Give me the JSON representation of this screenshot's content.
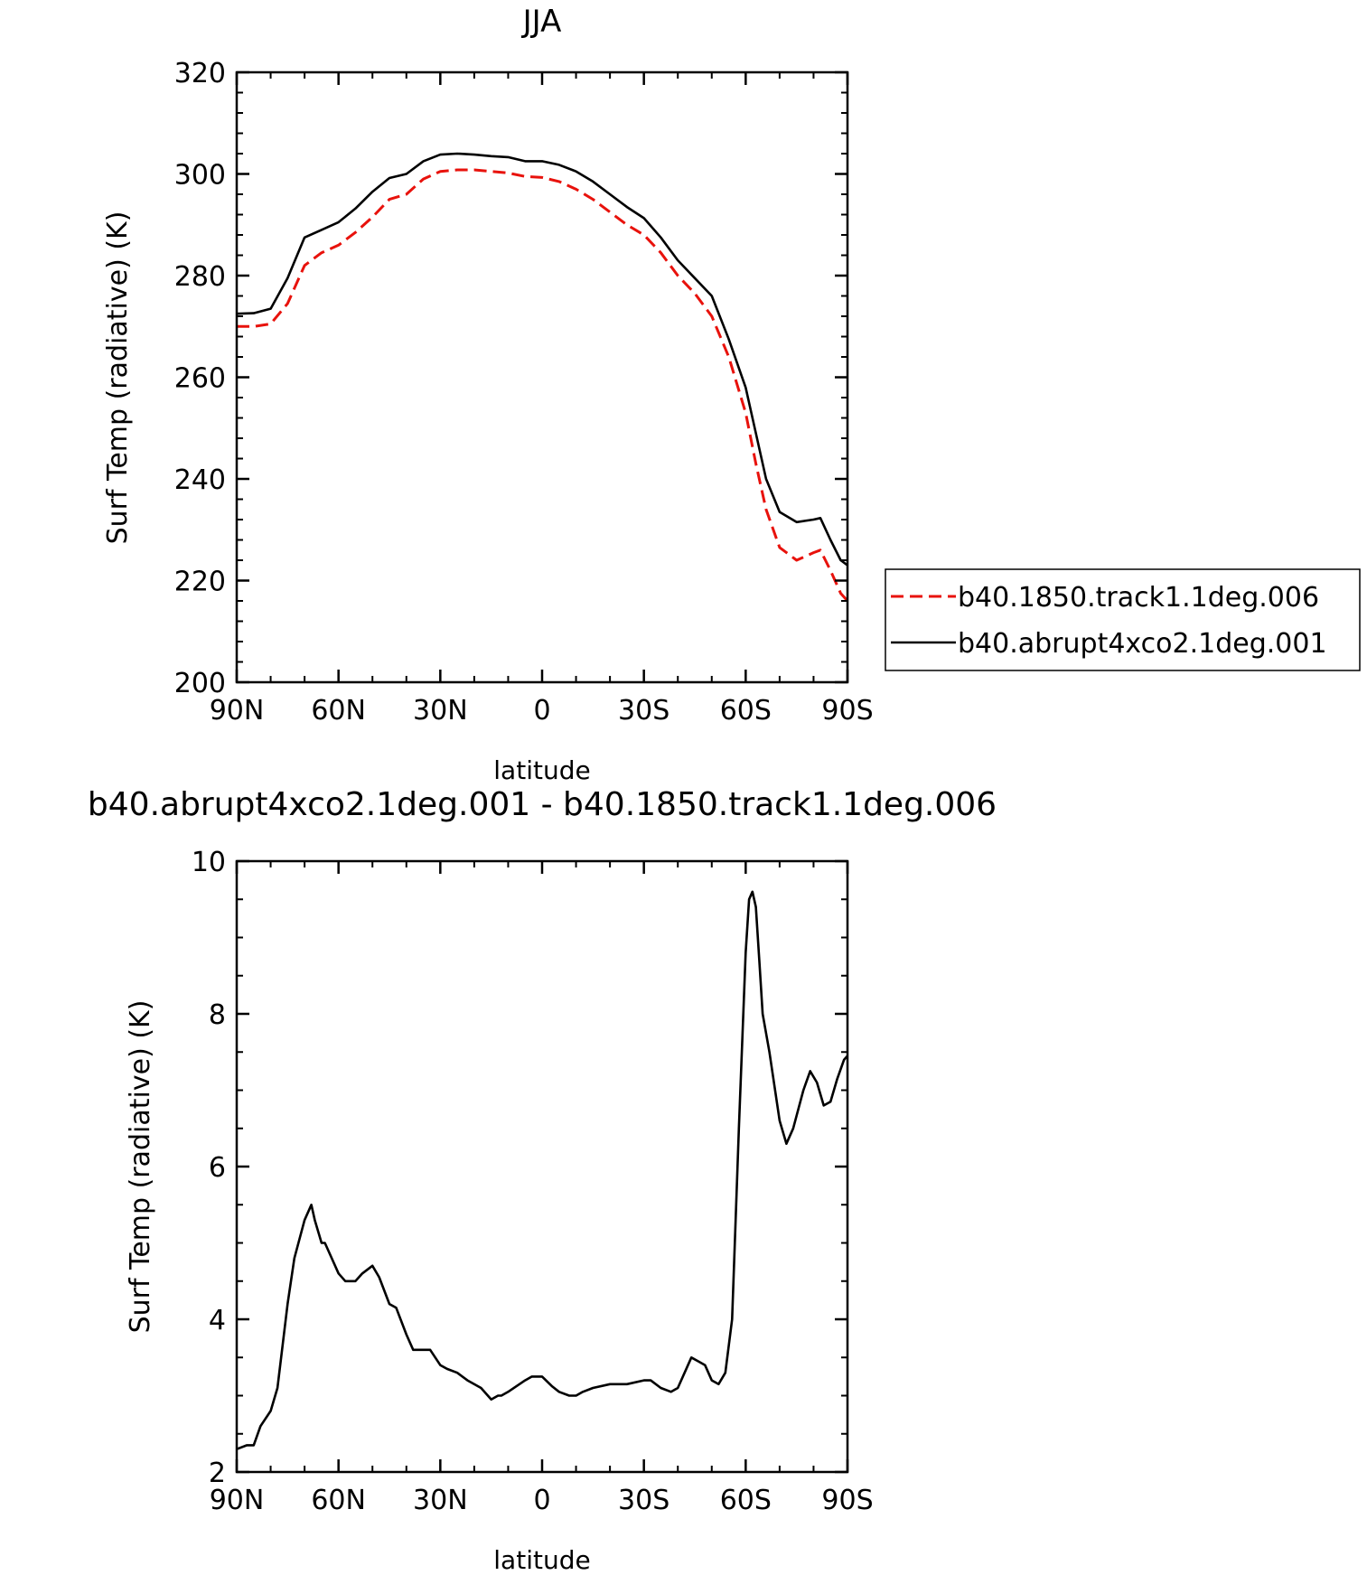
{
  "chart_data": [
    {
      "type": "line",
      "title": "JJA",
      "xlabel": "latitude",
      "ylabel": "Surf Temp (radiative) (K)",
      "x_ticks": [
        "90N",
        "60N",
        "30N",
        "0",
        "30S",
        "60S",
        "90S"
      ],
      "x_tick_values": [
        90,
        60,
        30,
        0,
        -30,
        -60,
        -90
      ],
      "xlim": [
        90,
        -90
      ],
      "ylim": [
        200,
        320
      ],
      "y_ticks": [
        200,
        220,
        240,
        260,
        280,
        300,
        320
      ],
      "legend_position": "right",
      "x": [
        90,
        85,
        80,
        75,
        70,
        65,
        60,
        55,
        50,
        45,
        40,
        35,
        30,
        25,
        20,
        15,
        10,
        5,
        0,
        -5,
        -10,
        -15,
        -20,
        -25,
        -30,
        -35,
        -40,
        -45,
        -50,
        -55,
        -60,
        -63,
        -66,
        -70,
        -75,
        -80,
        -82,
        -85,
        -88,
        -90
      ],
      "series": [
        {
          "name": "b40.1850.track1.1deg.006",
          "color": "#e8120c",
          "dash": "dashed",
          "values": [
            270.0,
            270.0,
            270.5,
            274.5,
            282.0,
            284.5,
            286.0,
            288.5,
            291.5,
            295.0,
            296.0,
            299.0,
            300.5,
            300.8,
            300.8,
            300.5,
            300.2,
            299.5,
            299.3,
            298.5,
            297.0,
            295.0,
            292.5,
            290.0,
            288.0,
            284.5,
            280.0,
            276.5,
            272.0,
            264.0,
            253.0,
            243.0,
            234.0,
            226.5,
            224.0,
            225.5,
            226.0,
            222.0,
            217.5,
            216.0
          ]
        },
        {
          "name": "b40.abrupt4xco2.1deg.001",
          "color": "#000000",
          "dash": "solid",
          "values": [
            272.5,
            272.6,
            273.5,
            279.5,
            287.5,
            289.0,
            290.5,
            293.2,
            296.5,
            299.2,
            300.0,
            302.5,
            303.8,
            304.0,
            303.8,
            303.5,
            303.3,
            302.5,
            302.5,
            301.8,
            300.5,
            298.5,
            296.0,
            293.5,
            291.3,
            287.5,
            283.0,
            279.5,
            276.0,
            267.5,
            258.0,
            249.0,
            240.0,
            233.5,
            231.5,
            232.0,
            232.3,
            228.0,
            224.0,
            223.0
          ]
        }
      ]
    },
    {
      "type": "line",
      "title": "b40.abrupt4xco2.1deg.001 - b40.1850.track1.1deg.006",
      "xlabel": "latitude",
      "ylabel": "Surf Temp (radiative) (K)",
      "x_ticks": [
        "90N",
        "60N",
        "30N",
        "0",
        "30S",
        "60S",
        "90S"
      ],
      "x_tick_values": [
        90,
        60,
        30,
        0,
        -30,
        -60,
        -90
      ],
      "xlim": [
        90,
        -90
      ],
      "ylim": [
        2,
        10
      ],
      "y_ticks": [
        2,
        4,
        6,
        8,
        10
      ],
      "x": [
        90,
        87,
        85,
        83,
        80,
        78,
        75,
        73,
        70,
        68,
        67,
        65,
        64,
        63,
        60,
        58,
        55,
        53,
        50,
        48,
        45,
        43,
        40,
        38,
        35,
        33,
        30,
        28,
        25,
        22,
        18,
        15,
        13,
        12,
        10,
        5,
        3,
        0,
        -3,
        -5,
        -8,
        -10,
        -12,
        -15,
        -20,
        -25,
        -30,
        -32,
        -35,
        -38,
        -40,
        -42,
        -44,
        -46,
        -48,
        -50,
        -52,
        -54,
        -56,
        -58,
        -60,
        -61,
        -62,
        -63,
        -64,
        -65,
        -67,
        -70,
        -72,
        -74,
        -77,
        -79,
        -81,
        -83,
        -85,
        -87,
        -89,
        -90
      ],
      "series": [
        {
          "name": "",
          "color": "#000000",
          "values": [
            2.3,
            2.35,
            2.35,
            2.6,
            2.8,
            3.1,
            4.2,
            4.8,
            5.3,
            5.5,
            5.3,
            5.0,
            5.0,
            4.9,
            4.6,
            4.5,
            4.5,
            4.6,
            4.7,
            4.55,
            4.2,
            4.15,
            3.8,
            3.6,
            3.6,
            3.6,
            3.4,
            3.35,
            3.3,
            3.2,
            3.1,
            2.95,
            3.0,
            3.0,
            3.05,
            3.2,
            3.25,
            3.25,
            3.12,
            3.05,
            3.0,
            3.0,
            3.05,
            3.1,
            3.15,
            3.15,
            3.2,
            3.2,
            3.1,
            3.05,
            3.1,
            3.3,
            3.5,
            3.45,
            3.4,
            3.2,
            3.15,
            3.3,
            4.0,
            6.5,
            8.8,
            9.5,
            9.6,
            9.4,
            8.7,
            8.0,
            7.5,
            6.6,
            6.3,
            6.5,
            7.0,
            7.25,
            7.1,
            6.8,
            6.85,
            7.15,
            7.4,
            7.45
          ]
        }
      ]
    }
  ]
}
